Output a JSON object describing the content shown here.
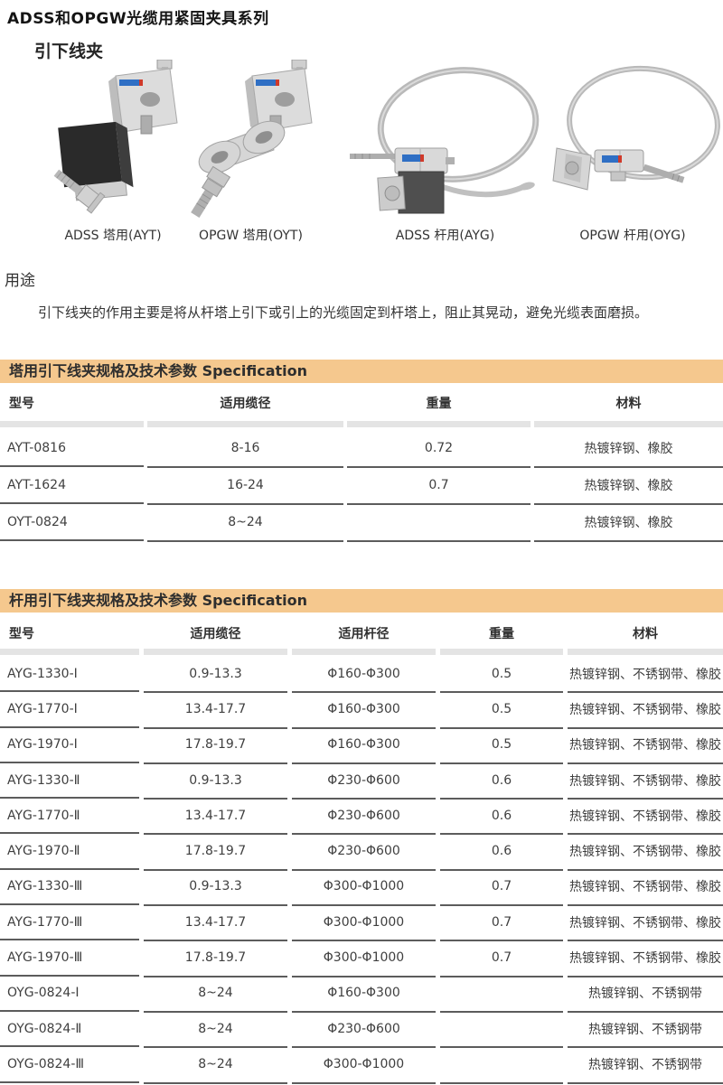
{
  "page": {
    "title": "ADSS和OPGW光缆用紧固夹具系列",
    "section_title": "引下线夹",
    "products": [
      {
        "caption": "ADSS 塔用(AYT)"
      },
      {
        "caption": "OPGW 塔用(OYT)"
      },
      {
        "caption": "ADSS 杆用(AYG)"
      },
      {
        "caption": "OPGW 杆用(OYG)"
      }
    ],
    "usage": {
      "heading": "用途",
      "text": "引下线夹的作用主要是将从杆塔上引下或引上的光缆固定到杆塔上，阻止其晃动，避免光缆表面磨损。"
    }
  },
  "table1": {
    "title": "塔用引下线夹规格及技术参数  Specification",
    "headers": [
      "型号",
      "适用缆径",
      "重量",
      "材料"
    ],
    "rows": [
      [
        "AYT-0816",
        "8-16",
        "0.72",
        "热镀锌钢、橡胶"
      ],
      [
        "AYT-1624",
        "16-24",
        "0.7",
        "热镀锌钢、橡胶"
      ],
      [
        "OYT-0824",
        "8~24",
        "",
        "热镀锌钢、橡胶"
      ]
    ]
  },
  "table2": {
    "title": "杆用引下线夹规格及技术参数  Specification",
    "headers": [
      "型号",
      "适用缆径",
      "适用杆径",
      "重量",
      "材料"
    ],
    "rows": [
      [
        "AYG-1330-Ⅰ",
        "0.9-13.3",
        "Φ160-Φ300",
        "0.5",
        "热镀锌钢、不锈钢带、橡胶"
      ],
      [
        "AYG-1770-Ⅰ",
        "13.4-17.7",
        "Φ160-Φ300",
        "0.5",
        "热镀锌钢、不锈钢带、橡胶"
      ],
      [
        "AYG-1970-Ⅰ",
        "17.8-19.7",
        "Φ160-Φ300",
        "0.5",
        "热镀锌钢、不锈钢带、橡胶"
      ],
      [
        "AYG-1330-Ⅱ",
        "0.9-13.3",
        "Φ230-Φ600",
        "0.6",
        "热镀锌钢、不锈钢带、橡胶"
      ],
      [
        "AYG-1770-Ⅱ",
        "13.4-17.7",
        "Φ230-Φ600",
        "0.6",
        "热镀锌钢、不锈钢带、橡胶"
      ],
      [
        "AYG-1970-Ⅱ",
        "17.8-19.7",
        "Φ230-Φ600",
        "0.6",
        "热镀锌钢、不锈钢带、橡胶"
      ],
      [
        "AYG-1330-Ⅲ",
        "0.9-13.3",
        "Φ300-Φ1000",
        "0.7",
        "热镀锌钢、不锈钢带、橡胶"
      ],
      [
        "AYG-1770-Ⅲ",
        "13.4-17.7",
        "Φ300-Φ1000",
        "0.7",
        "热镀锌钢、不锈钢带、橡胶"
      ],
      [
        "AYG-1970-Ⅲ",
        "17.8-19.7",
        "Φ300-Φ1000",
        "0.7",
        "热镀锌钢、不锈钢带、橡胶"
      ],
      [
        "OYG-0824-Ⅰ",
        "8~24",
        "Φ160-Φ300",
        "",
        "热镀锌钢、不锈钢带"
      ],
      [
        "OYG-0824-Ⅱ",
        "8~24",
        "Φ230-Φ600",
        "",
        "热镀锌钢、不锈钢带"
      ],
      [
        "OYG-0824-Ⅲ",
        "8~24",
        "Φ300-Φ1000",
        "",
        "热镀锌钢、不锈钢带"
      ]
    ]
  },
  "colors": {
    "header_bar_bg": "#f5c88e",
    "header_bar_text": "#2e2e2e",
    "column_underline": "#e4e4e4",
    "row_separator": "#5c5c5c",
    "body_text": "#3d3d3d"
  }
}
